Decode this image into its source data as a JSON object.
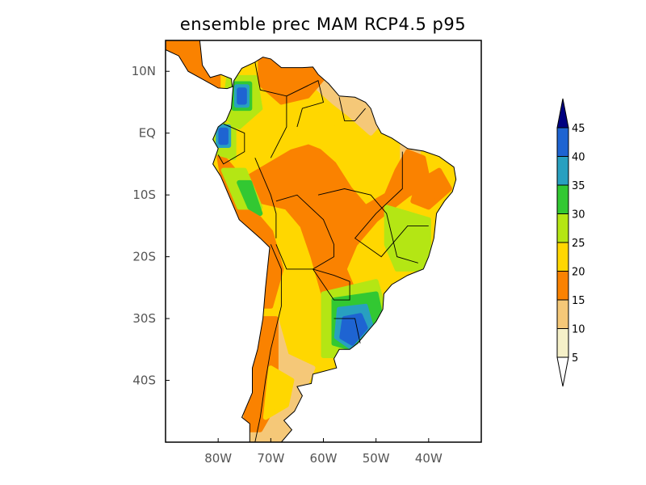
{
  "title": "ensemble prec MAM RCP4.5 p95",
  "map": {
    "region": "South America",
    "lon_range": [
      -90,
      -30
    ],
    "lat_range": [
      -50,
      15
    ],
    "lon_ticks": [
      {
        "value": -80,
        "label": "80W"
      },
      {
        "value": -70,
        "label": "70W"
      },
      {
        "value": -60,
        "label": "60W"
      },
      {
        "value": -50,
        "label": "50W"
      },
      {
        "value": -40,
        "label": "40W"
      }
    ],
    "lat_ticks": [
      {
        "value": 10,
        "label": "10N"
      },
      {
        "value": 0,
        "label": "EQ"
      },
      {
        "value": -10,
        "label": "10S"
      },
      {
        "value": -20,
        "label": "20S"
      },
      {
        "value": -30,
        "label": "30S"
      },
      {
        "value": -40,
        "label": "40S"
      }
    ]
  },
  "colorbar": {
    "levels": [
      "5",
      "10",
      "15",
      "20",
      "25",
      "30",
      "35",
      "40",
      "45"
    ],
    "colors": [
      "#ffffff",
      "#f5f0c8",
      "#f5c878",
      "#fa8200",
      "#ffd700",
      "#b4e614",
      "#32c832",
      "#28a0c0",
      "#1e64d2",
      "#000080"
    ]
  }
}
